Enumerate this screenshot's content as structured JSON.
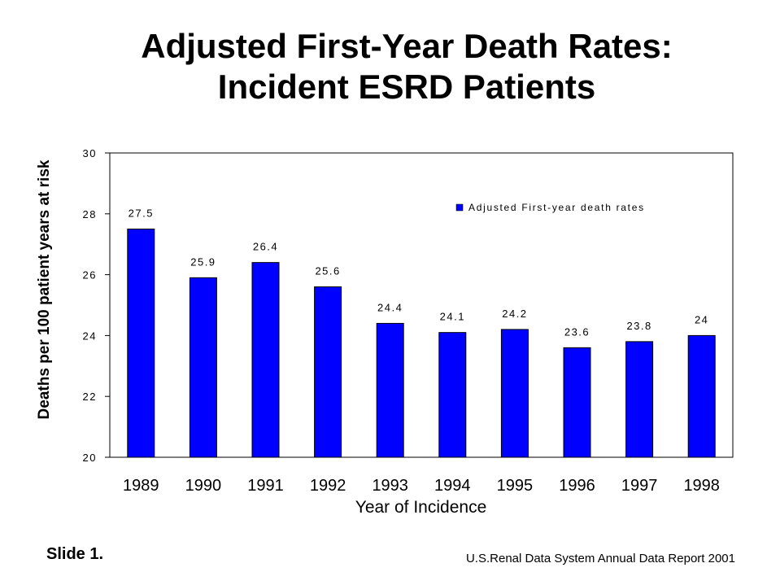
{
  "slide": {
    "label": "Slide 1.",
    "source": "U.S.Renal Data System Annual Data Report 2001"
  },
  "chart_data": {
    "type": "bar",
    "title": "Adjusted First-Year Death Rates: Incident ESRD Patients",
    "title_lines": [
      "Adjusted First-Year Death Rates:",
      "Incident ESRD Patients"
    ],
    "xlabel": "Year of Incidence",
    "ylabel": "Deaths per 100 patient years at risk",
    "categories": [
      "1989",
      "1990",
      "1991",
      "1992",
      "1993",
      "1994",
      "1995",
      "1996",
      "1997",
      "1998"
    ],
    "series": [
      {
        "name": "Adjusted First-year death rates",
        "values": [
          27.5,
          25.9,
          26.4,
          25.6,
          24.4,
          24.1,
          24.2,
          23.6,
          23.8,
          24
        ],
        "labels": [
          "27.5",
          "25.9",
          "26.4",
          "25.6",
          "24.4",
          "24.1",
          "24.2",
          "23.6",
          "23.8",
          "24"
        ],
        "color": "#0000ff"
      }
    ],
    "ylim": [
      20,
      30
    ],
    "yticks": [
      20,
      22,
      24,
      26,
      28,
      30
    ],
    "grid": false,
    "legend": "top-right"
  }
}
